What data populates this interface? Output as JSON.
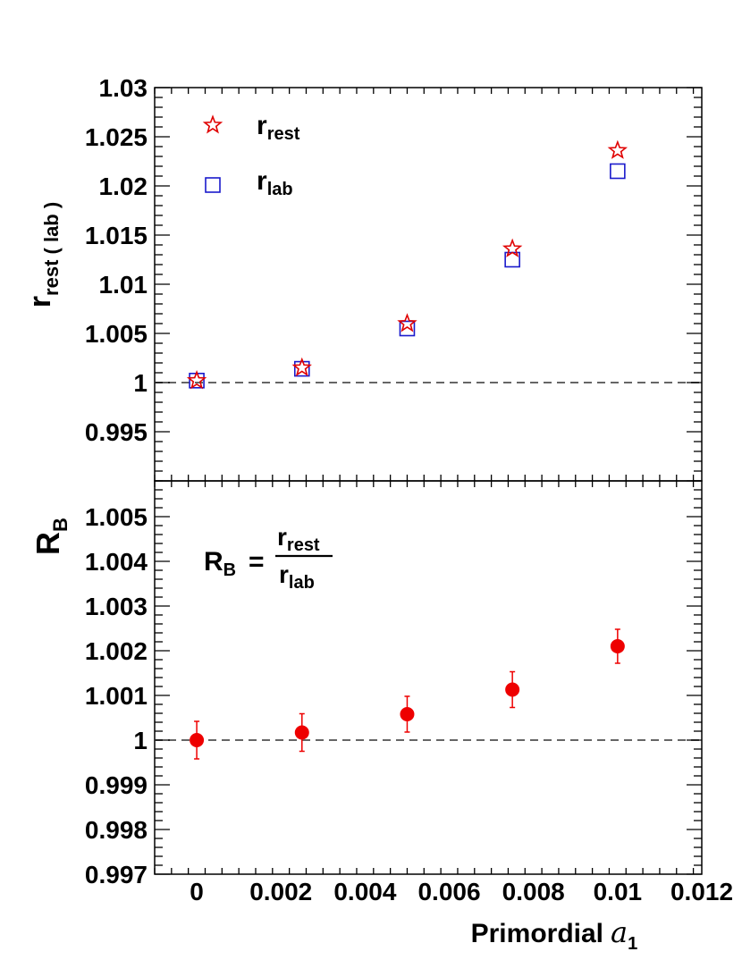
{
  "chart_data": [
    {
      "type": "scatter",
      "panel": "top",
      "ylabel": "r",
      "ylabel_sub": "rest ( lab )",
      "xlim": [
        -0.001,
        0.012
      ],
      "ylim": [
        0.99,
        1.03
      ],
      "yticks": [
        0.995,
        1,
        1.005,
        1.01,
        1.015,
        1.02,
        1.025,
        1.03
      ],
      "ytick_labels": [
        "0.995",
        "1",
        "1.005",
        "1.01",
        "1.015",
        "1.02",
        "1.025",
        "1.03"
      ],
      "reference_line": 1,
      "legend": {
        "placement": "top-left"
      },
      "series": [
        {
          "name": "r",
          "name_sub": "rest",
          "marker": "open-star",
          "color": "#e00000",
          "x": [
            0,
            0.0025,
            0.005,
            0.0075,
            0.01
          ],
          "y": [
            1.0002,
            1.0015,
            1.006,
            1.0136,
            1.0236
          ]
        },
        {
          "name": "r",
          "name_sub": "lab",
          "marker": "open-square",
          "color": "#1a1acc",
          "x": [
            0,
            0.0025,
            0.005,
            0.0075,
            0.01
          ],
          "y": [
            1.0002,
            1.0014,
            1.0055,
            1.0125,
            1.0215
          ]
        }
      ]
    },
    {
      "type": "scatter",
      "panel": "bottom",
      "ylabel": "R",
      "ylabel_sub": "B",
      "xlabel": "Primordial",
      "xlabel_symbol": "a",
      "xlabel_symbol_sub": "1",
      "xlim": [
        -0.001,
        0.012
      ],
      "ylim": [
        0.997,
        1.0058
      ],
      "xticks": [
        0,
        0.002,
        0.004,
        0.006,
        0.008,
        0.01,
        0.012
      ],
      "xtick_labels": [
        "0",
        "0.002",
        "0.004",
        "0.006",
        "0.008",
        "0.01",
        "0.012"
      ],
      "yticks": [
        0.997,
        0.998,
        0.999,
        1,
        1.001,
        1.002,
        1.003,
        1.004,
        1.005
      ],
      "ytick_labels": [
        "0.997",
        "0.998",
        "0.999",
        "1",
        "1.001",
        "1.002",
        "1.003",
        "1.004",
        "1.005"
      ],
      "reference_line": 1,
      "annotation": {
        "lhs": "R",
        "lhs_sub": "B",
        "equals": "=",
        "num": "r",
        "num_sub": "rest",
        "den": "r",
        "den_sub": "lab"
      },
      "series": [
        {
          "name": "R_B",
          "marker": "filled-circle",
          "color": "#ee0000",
          "x": [
            0,
            0.0025,
            0.005,
            0.0075,
            0.01
          ],
          "y": [
            1.0,
            1.00017,
            1.00058,
            1.00113,
            1.0021
          ],
          "err": [
            0.00042,
            0.00042,
            0.0004,
            0.0004,
            0.00038
          ]
        }
      ]
    }
  ]
}
